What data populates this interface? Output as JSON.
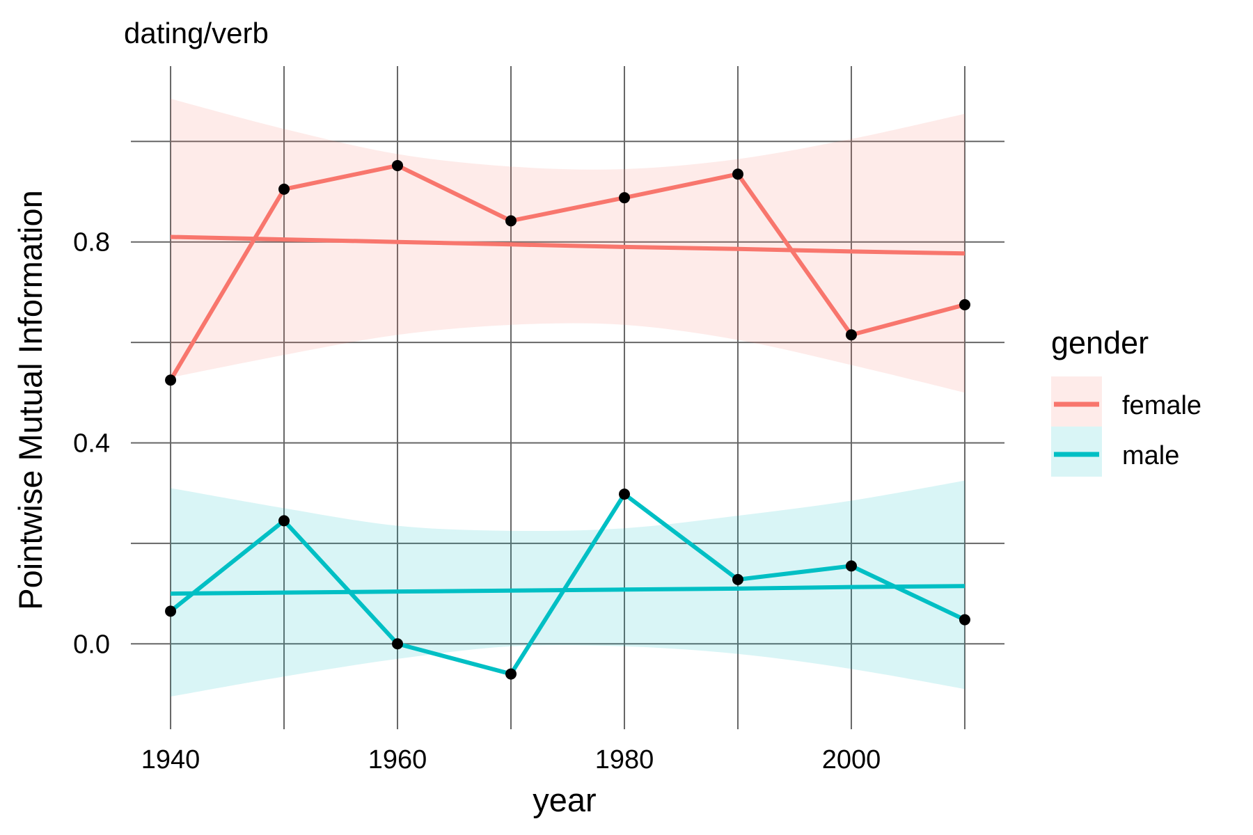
{
  "chart_data": {
    "type": "line",
    "title": "dating/verb",
    "xlabel": "year",
    "ylabel": "Pointwise Mutual Information",
    "x": [
      1940,
      1950,
      1960,
      1970,
      1980,
      1990,
      2000,
      2010
    ],
    "xlim": [
      1936.5,
      2013.5
    ],
    "ylim": [
      -0.17,
      1.15
    ],
    "x_ticks": [
      1940,
      1960,
      1980,
      2000
    ],
    "x_tick_labels": [
      "1940",
      "1960",
      "1980",
      "2000"
    ],
    "x_grid": [
      1940,
      1950,
      1960,
      1970,
      1980,
      1990,
      2000,
      2010
    ],
    "y_ticks": [
      0.0,
      0.4,
      0.8
    ],
    "y_tick_labels": [
      "0.0",
      "0.4",
      "0.8"
    ],
    "y_grid": [
      0.0,
      0.2,
      0.4,
      0.6,
      0.8,
      1.0
    ],
    "grid": true,
    "legend": {
      "title": "gender",
      "position": "right"
    },
    "series": [
      {
        "name": "female",
        "color": "#F8766D",
        "values": [
          0.525,
          0.905,
          0.952,
          0.842,
          0.888,
          0.935,
          0.615,
          0.675
        ],
        "trend": [
          0.81,
          0.805,
          0.8,
          0.795,
          0.79,
          0.786,
          0.781,
          0.777
        ],
        "ci_lower": [
          0.53,
          0.575,
          0.615,
          0.635,
          0.635,
          0.605,
          0.555,
          0.5
        ],
        "ci_upper": [
          1.085,
          1.025,
          0.975,
          0.95,
          0.945,
          0.965,
          1.005,
          1.055
        ]
      },
      {
        "name": "male",
        "color": "#00BFC4",
        "values": [
          0.065,
          0.245,
          0.0,
          -0.06,
          0.298,
          0.128,
          0.155,
          0.048
        ],
        "trend": [
          0.1,
          0.102,
          0.104,
          0.106,
          0.108,
          0.11,
          0.113,
          0.115
        ],
        "ci_lower": [
          -0.105,
          -0.065,
          -0.03,
          -0.005,
          -0.005,
          -0.02,
          -0.05,
          -0.09
        ],
        "ci_upper": [
          0.31,
          0.27,
          0.235,
          0.225,
          0.23,
          0.255,
          0.285,
          0.325
        ]
      }
    ]
  }
}
